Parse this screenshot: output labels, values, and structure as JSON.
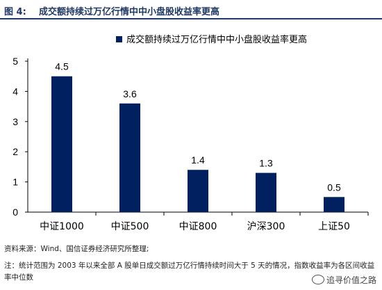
{
  "figure": {
    "label": "图 4:",
    "title": "成交额持续过万亿行情中中小盘股收益率更高"
  },
  "chart_data": {
    "type": "bar",
    "title": "",
    "legend": {
      "entries": [
        "成交额持续过万亿行情中中小盘股收益率更高"
      ],
      "position": "top-center"
    },
    "categories": [
      "中证1000",
      "中证500",
      "中证800",
      "沪深300",
      "上证50"
    ],
    "values": [
      4.5,
      3.6,
      1.4,
      1.3,
      0.5
    ],
    "data_labels": [
      "4.5",
      "3.6",
      "1.4",
      "1.3",
      "0.5"
    ],
    "ylim": [
      0,
      5
    ],
    "yticks": [
      0,
      1,
      2,
      3,
      4,
      5
    ],
    "xlabel": "",
    "ylabel": "",
    "grid": false,
    "bar_color": "#002060"
  },
  "notes": {
    "source": "资料来源：Wind、国信证券经济研究所整理;",
    "note": "注：统计范围为 2003 年以来全部 A 股单日成交额过万亿行情持续时间大于 5 天的情况，指数收益率为各区间收益率中位数"
  },
  "watermark": "追寻价值之路"
}
